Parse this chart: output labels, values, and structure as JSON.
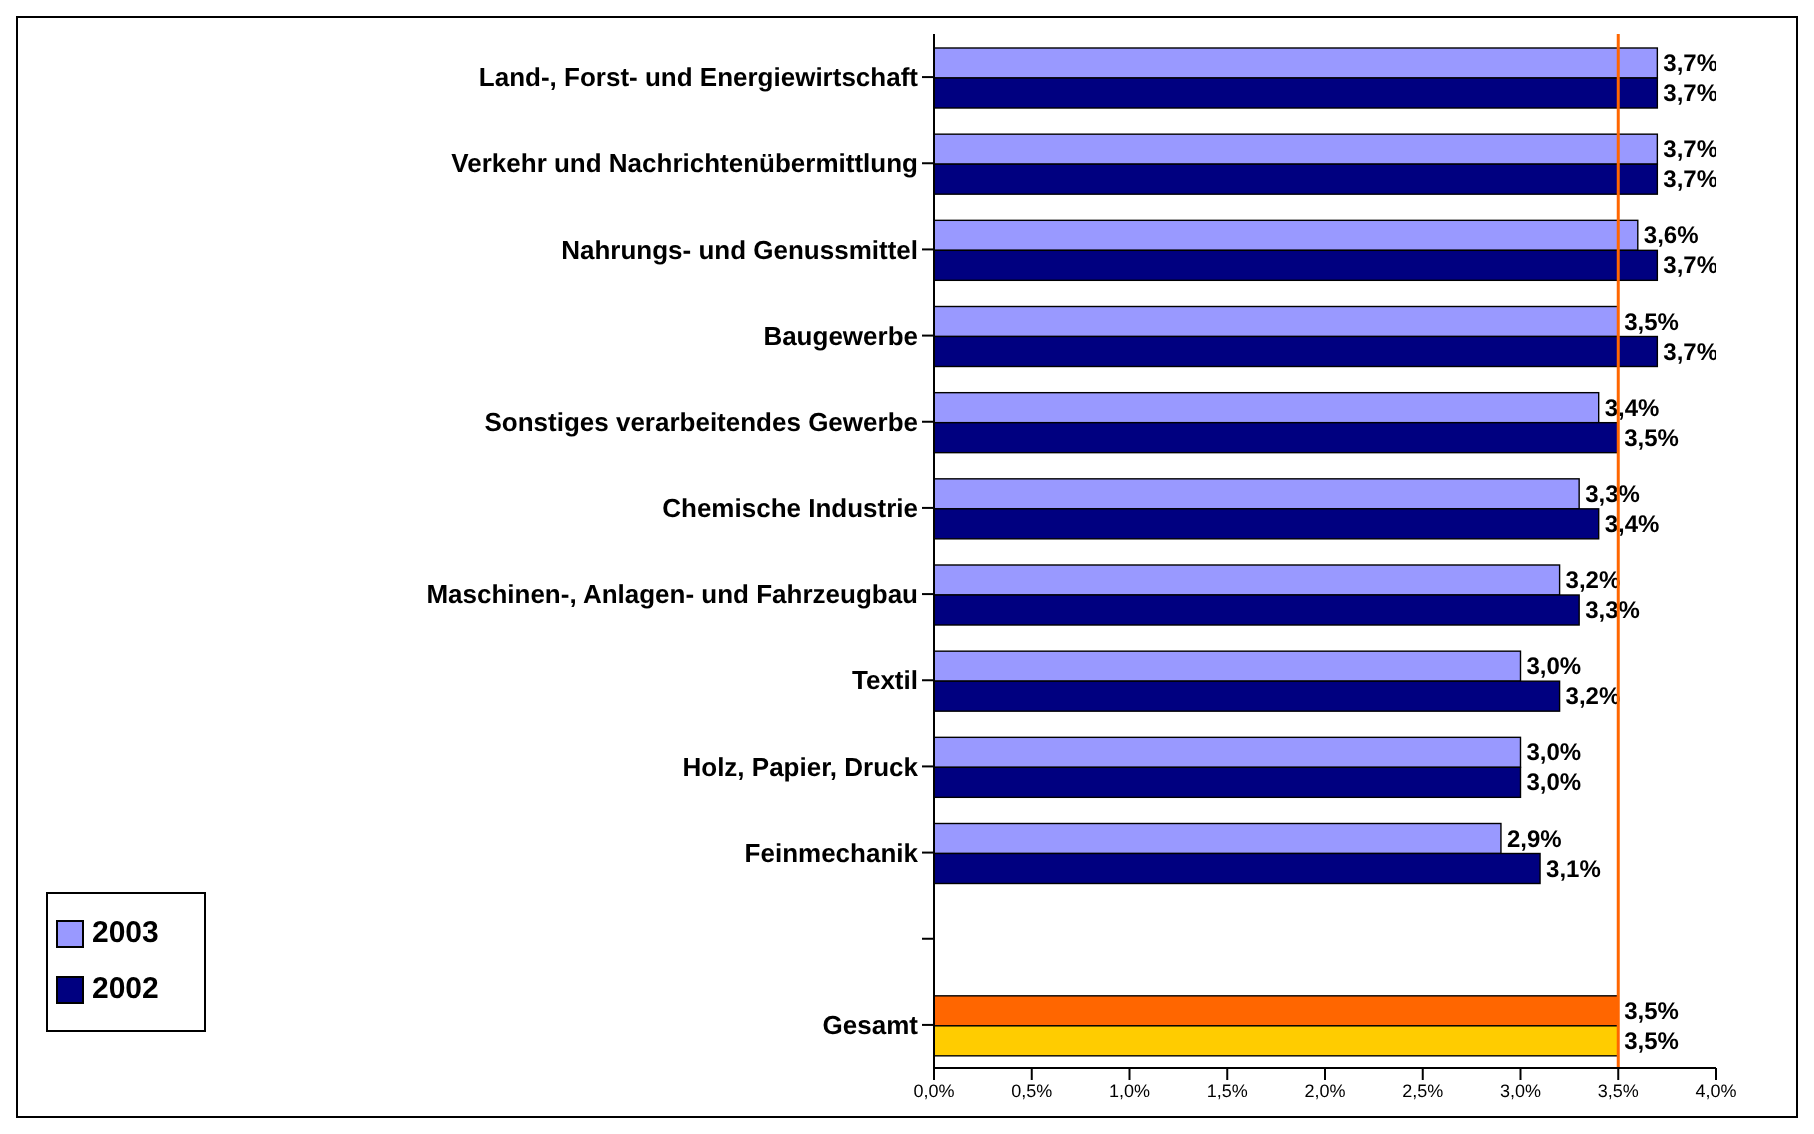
{
  "chart_data": {
    "type": "bar",
    "orientation": "horizontal",
    "categories": [
      "Land-, Forst- und Energiewirtschaft",
      "Verkehr und Nachrichtenübermittlung",
      "Nahrungs- und Genussmittel",
      "Baugewerbe",
      "Sonstiges verarbeitendes Gewerbe",
      "Chemische Industrie",
      "Maschinen-, Anlagen- und Fahrzeugbau",
      "Textil",
      "Holz, Papier, Druck",
      "Feinmechanik",
      null,
      "Gesamt"
    ],
    "series": [
      {
        "name": "2003",
        "color": "#9999ff",
        "colors": [
          "#9999ff",
          "#9999ff",
          "#9999ff",
          "#9999ff",
          "#9999ff",
          "#9999ff",
          "#9999ff",
          "#9999ff",
          "#9999ff",
          "#9999ff",
          "#9999ff",
          "#ff6600"
        ],
        "values": [
          3.7,
          3.7,
          3.6,
          3.5,
          3.4,
          3.3,
          3.2,
          3.0,
          3.0,
          2.9,
          null,
          3.5
        ],
        "value_labels": [
          "3,7%",
          "3,7%",
          "3,6%",
          "3,5%",
          "3,4%",
          "3,3%",
          "3,2%",
          "3,0%",
          "3,0%",
          "2,9%",
          null,
          "3,5%"
        ]
      },
      {
        "name": "2002",
        "color": "#000080",
        "colors": [
          "#000080",
          "#000080",
          "#000080",
          "#000080",
          "#000080",
          "#000080",
          "#000080",
          "#000080",
          "#000080",
          "#000080",
          "#000080",
          "#ffcc00"
        ],
        "values": [
          3.7,
          3.7,
          3.7,
          3.7,
          3.5,
          3.4,
          3.3,
          3.2,
          3.0,
          3.1,
          null,
          3.5
        ],
        "value_labels": [
          "3,7%",
          "3,7%",
          "3,7%",
          "3,7%",
          "3,5%",
          "3,4%",
          "3,3%",
          "3,2%",
          "3,0%",
          "3,1%",
          null,
          "3,5%"
        ]
      }
    ],
    "xlim": [
      0,
      4
    ],
    "xticks": [
      {
        "value": 0,
        "label": "0,0%"
      },
      {
        "value": 0.5,
        "label": "0,5%"
      },
      {
        "value": 1,
        "label": "1,0%"
      },
      {
        "value": 1.5,
        "label": "1,5%"
      },
      {
        "value": 2,
        "label": "2,0%"
      },
      {
        "value": 2.5,
        "label": "2,5%"
      },
      {
        "value": 3,
        "label": "3,0%"
      },
      {
        "value": 3.5,
        "label": "3,5%"
      },
      {
        "value": 4,
        "label": "4,0%"
      }
    ],
    "ref_lines": [
      {
        "axis": "x",
        "value": 3.5,
        "label": null,
        "color": "#ff6600"
      }
    ],
    "legend": "bottom left"
  }
}
